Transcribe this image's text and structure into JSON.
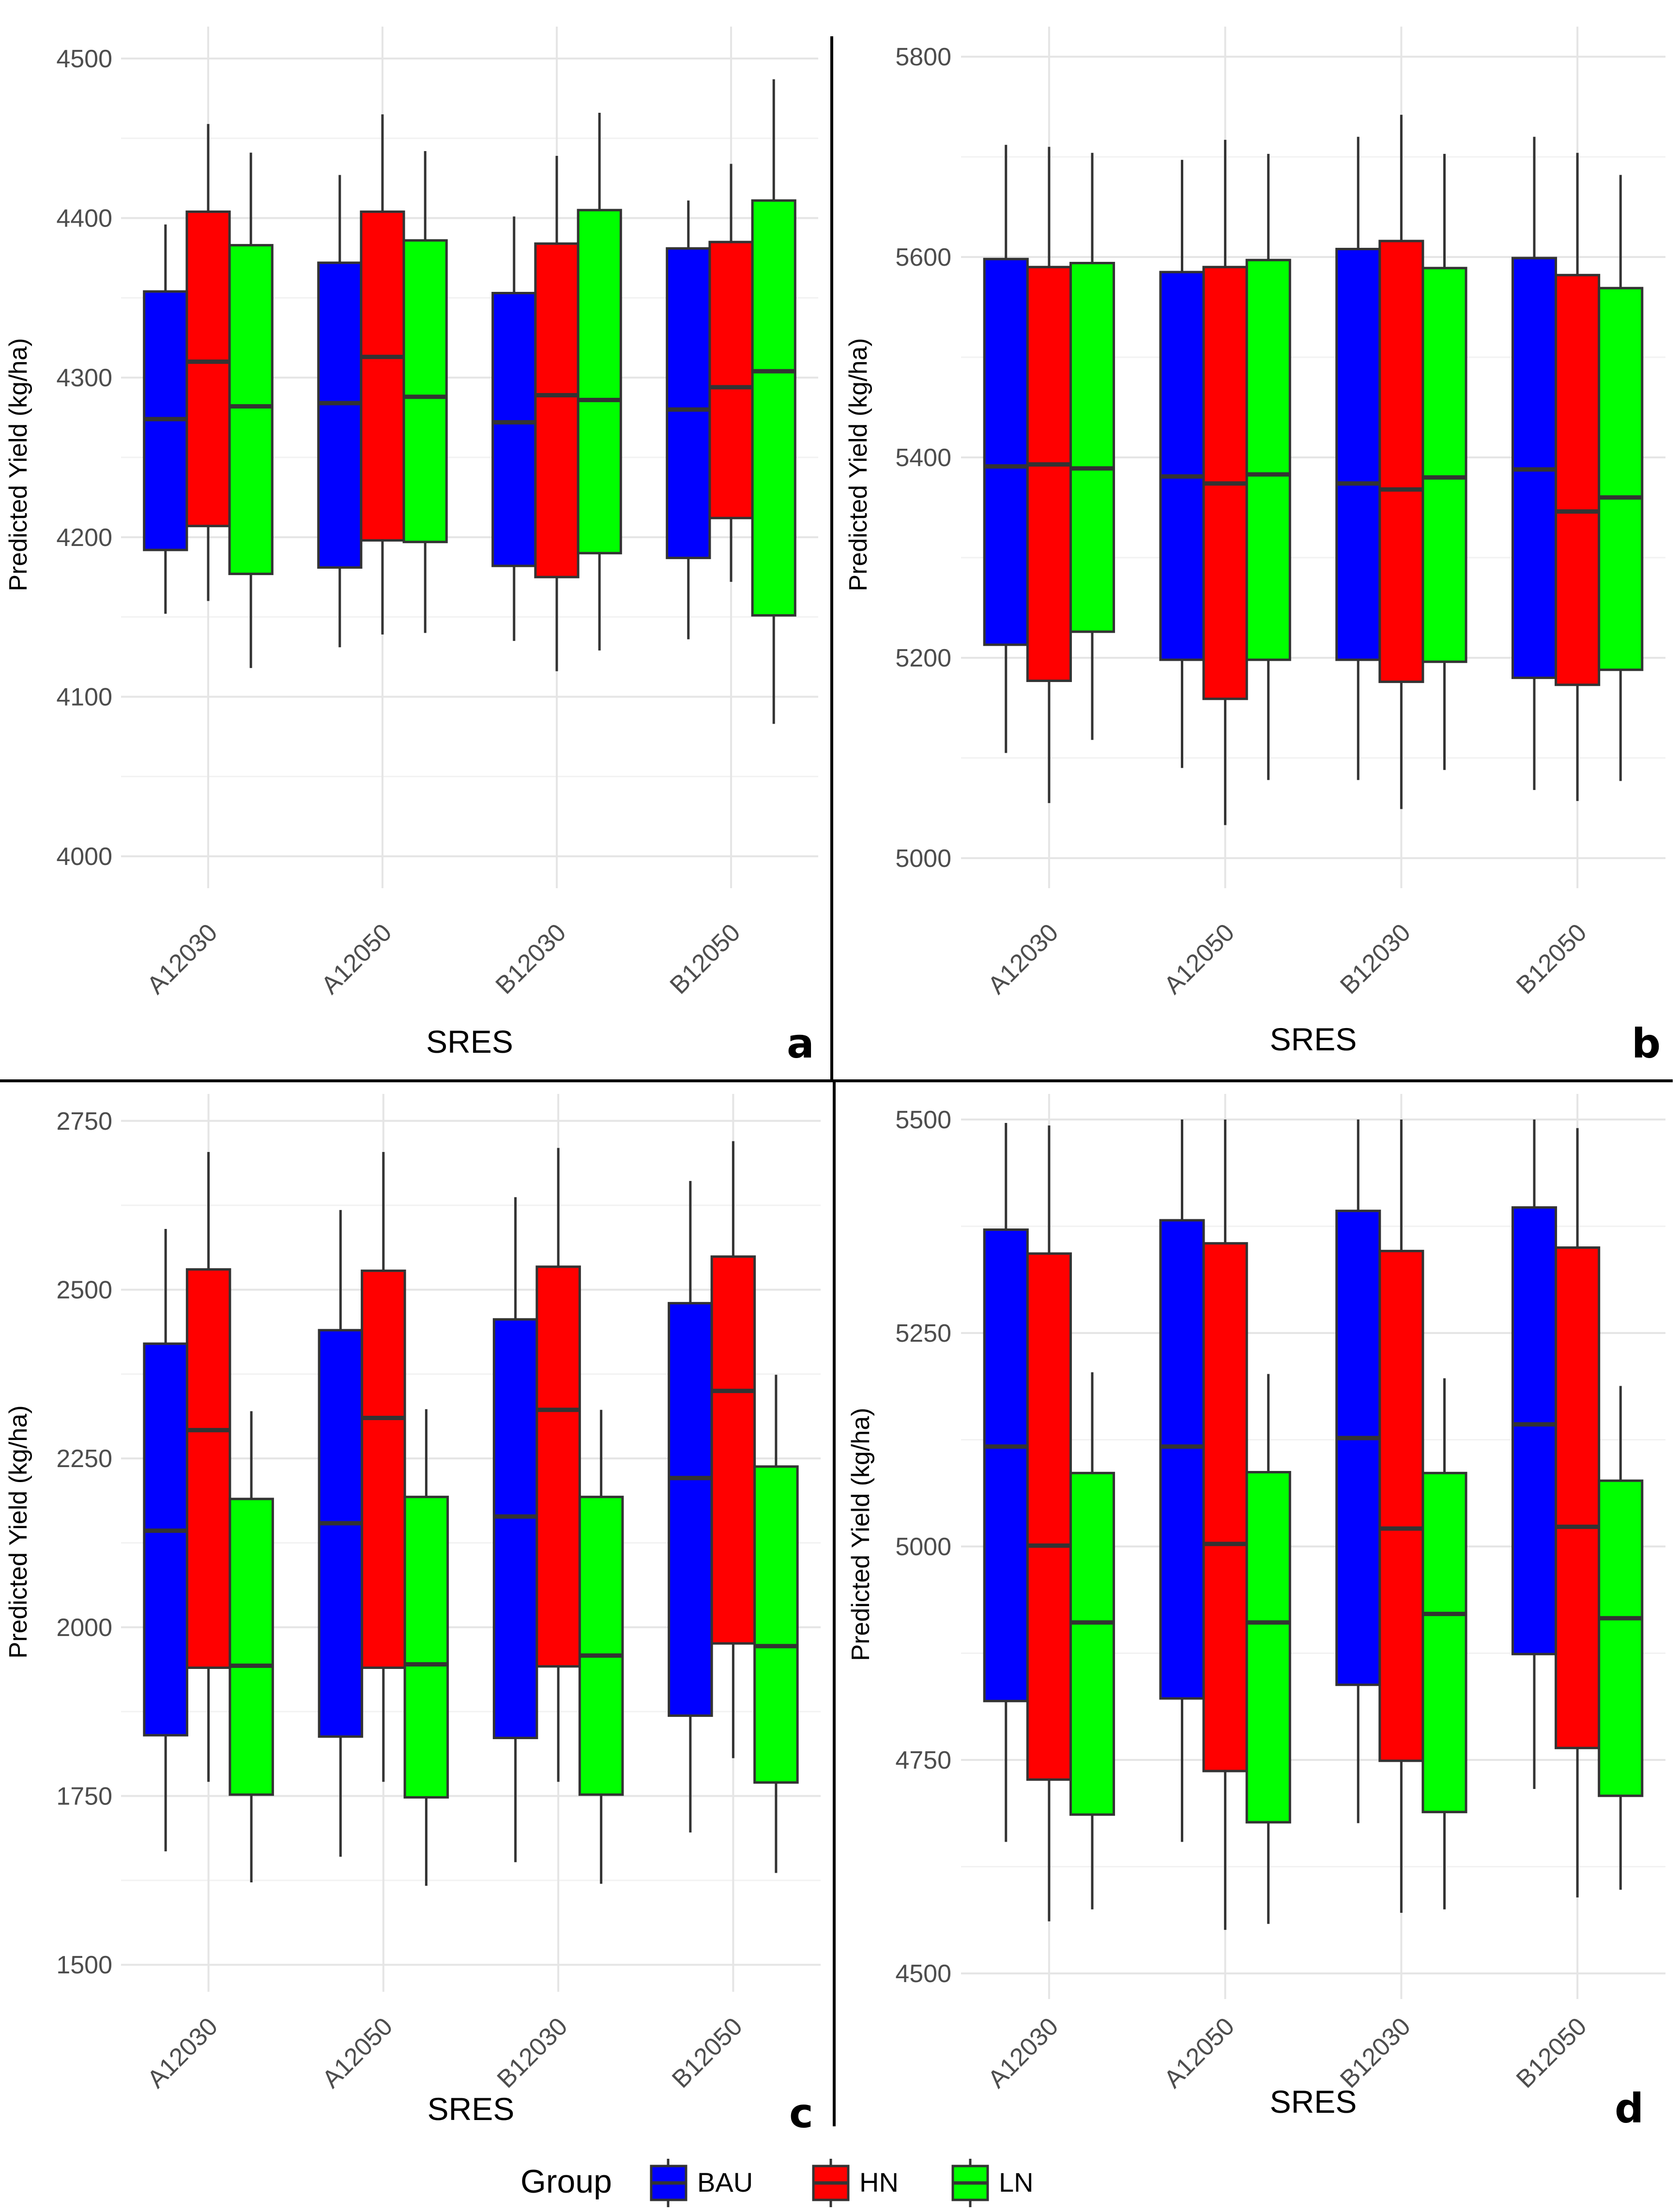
{
  "legend": {
    "title": "Group",
    "items": [
      {
        "label": "BAU",
        "color": "#0000ff"
      },
      {
        "label": "HN",
        "color": "#ff0000"
      },
      {
        "label": "LN",
        "color": "#00ff00"
      }
    ]
  },
  "chart_data": [
    {
      "panel": "a",
      "type": "boxplot",
      "xlabel": "SRES",
      "ylabel": "Predicted Yield (kg/ha)",
      "ylim": [
        3980,
        4520
      ],
      "yticks": [
        4000,
        4100,
        4200,
        4300,
        4400,
        4500
      ],
      "categories": [
        "A12030",
        "A12050",
        "B12030",
        "B12050"
      ],
      "series": [
        {
          "name": "BAU",
          "boxes": [
            {
              "min": 4152,
              "q1": 4192,
              "median": 4274,
              "q3": 4354,
              "max": 4396
            },
            {
              "min": 4131,
              "q1": 4181,
              "median": 4284,
              "q3": 4372,
              "max": 4427
            },
            {
              "min": 4135,
              "q1": 4182,
              "median": 4272,
              "q3": 4353,
              "max": 4401
            },
            {
              "min": 4136,
              "q1": 4187,
              "median": 4280,
              "q3": 4381,
              "max": 4411
            }
          ]
        },
        {
          "name": "HN",
          "boxes": [
            {
              "min": 4160,
              "q1": 4207,
              "median": 4310,
              "q3": 4404,
              "max": 4459
            },
            {
              "min": 4139,
              "q1": 4198,
              "median": 4313,
              "q3": 4404,
              "max": 4465
            },
            {
              "min": 4116,
              "q1": 4175,
              "median": 4289,
              "q3": 4384,
              "max": 4439
            },
            {
              "min": 4172,
              "q1": 4212,
              "median": 4294,
              "q3": 4385,
              "max": 4434
            }
          ]
        },
        {
          "name": "LN",
          "boxes": [
            {
              "min": 4118,
              "q1": 4177,
              "median": 4282,
              "q3": 4383,
              "max": 4441
            },
            {
              "min": 4140,
              "q1": 4197,
              "median": 4288,
              "q3": 4386,
              "max": 4442
            },
            {
              "min": 4129,
              "q1": 4190,
              "median": 4286,
              "q3": 4405,
              "max": 4466
            },
            {
              "min": 4083,
              "q1": 4151,
              "median": 4304,
              "q3": 4411,
              "max": 4487
            }
          ]
        }
      ]
    },
    {
      "panel": "b",
      "type": "boxplot",
      "xlabel": "SRES",
      "ylabel": "Predicted Yield (kg/ha)",
      "ylim": [
        4970,
        5830
      ],
      "yticks": [
        5000,
        5200,
        5400,
        5600,
        5800
      ],
      "categories": [
        "A12030",
        "A12050",
        "B12030",
        "B12050"
      ],
      "series": [
        {
          "name": "BAU",
          "boxes": [
            {
              "min": 5105,
              "q1": 5213,
              "median": 5391,
              "q3": 5598,
              "max": 5712
            },
            {
              "min": 5090,
              "q1": 5198,
              "median": 5381,
              "q3": 5585,
              "max": 5697
            },
            {
              "min": 5078,
              "q1": 5198,
              "median": 5374,
              "q3": 5608,
              "max": 5720
            },
            {
              "min": 5068,
              "q1": 5180,
              "median": 5388,
              "q3": 5599,
              "max": 5720
            }
          ]
        },
        {
          "name": "HN",
          "boxes": [
            {
              "min": 5055,
              "q1": 5177,
              "median": 5393,
              "q3": 5590,
              "max": 5710
            },
            {
              "min": 5033,
              "q1": 5159,
              "median": 5374,
              "q3": 5590,
              "max": 5717
            },
            {
              "min": 5049,
              "q1": 5176,
              "median": 5368,
              "q3": 5616,
              "max": 5742
            },
            {
              "min": 5057,
              "q1": 5173,
              "median": 5346,
              "q3": 5582,
              "max": 5704
            }
          ]
        },
        {
          "name": "LN",
          "boxes": [
            {
              "min": 5118,
              "q1": 5226,
              "median": 5389,
              "q3": 5594,
              "max": 5704
            },
            {
              "min": 5078,
              "q1": 5198,
              "median": 5383,
              "q3": 5597,
              "max": 5703
            },
            {
              "min": 5088,
              "q1": 5196,
              "median": 5380,
              "q3": 5589,
              "max": 5703
            },
            {
              "min": 5077,
              "q1": 5188,
              "median": 5360,
              "q3": 5569,
              "max": 5682
            }
          ]
        }
      ]
    },
    {
      "panel": "c",
      "type": "boxplot",
      "xlabel": "SRES",
      "ylabel": "Predicted Yield (kg/ha)",
      "ylim": [
        1460,
        2790
      ],
      "yticks": [
        1500,
        1750,
        2000,
        2250,
        2500,
        2750
      ],
      "categories": [
        "A12030",
        "A12050",
        "B12030",
        "B12050"
      ],
      "series": [
        {
          "name": "BAU",
          "boxes": [
            {
              "min": 1668,
              "q1": 1840,
              "median": 2143,
              "q3": 2420,
              "max": 2590
            },
            {
              "min": 1660,
              "q1": 1838,
              "median": 2154,
              "q3": 2440,
              "max": 2618
            },
            {
              "min": 1652,
              "q1": 1836,
              "median": 2164,
              "q3": 2456,
              "max": 2637
            },
            {
              "min": 1696,
              "q1": 1869,
              "median": 2221,
              "q3": 2480,
              "max": 2661
            }
          ]
        },
        {
          "name": "HN",
          "boxes": [
            {
              "min": 1771,
              "q1": 1940,
              "median": 2292,
              "q3": 2530,
              "max": 2704
            },
            {
              "min": 1771,
              "q1": 1940,
              "median": 2310,
              "q3": 2528,
              "max": 2704
            },
            {
              "min": 1771,
              "q1": 1942,
              "median": 2322,
              "q3": 2534,
              "max": 2710
            },
            {
              "min": 1806,
              "q1": 1976,
              "median": 2350,
              "q3": 2549,
              "max": 2720
            }
          ]
        },
        {
          "name": "LN",
          "boxes": [
            {
              "min": 1622,
              "q1": 1752,
              "median": 1943,
              "q3": 2190,
              "max": 2320
            },
            {
              "min": 1617,
              "q1": 1748,
              "median": 1945,
              "q3": 2193,
              "max": 2323
            },
            {
              "min": 1620,
              "q1": 1752,
              "median": 1958,
              "q3": 2193,
              "max": 2322
            },
            {
              "min": 1636,
              "q1": 1770,
              "median": 1972,
              "q3": 2238,
              "max": 2374
            }
          ]
        }
      ]
    },
    {
      "panel": "d",
      "type": "boxplot",
      "xlabel": "SRES",
      "ylabel": "Predicted Yield (kg/ha)",
      "ylim": [
        4470,
        5530
      ],
      "yticks": [
        4500,
        4750,
        5000,
        5250,
        5500
      ],
      "categories": [
        "A12030",
        "A12050",
        "B12030",
        "B12050"
      ],
      "series": [
        {
          "name": "BAU",
          "boxes": [
            {
              "min": 4654,
              "q1": 4819,
              "median": 5117,
              "q3": 5371,
              "max": 5496
            },
            {
              "min": 4654,
              "q1": 4822,
              "median": 5117,
              "q3": 5382,
              "max": 5500
            },
            {
              "min": 4676,
              "q1": 4838,
              "median": 5127,
              "q3": 5393,
              "max": 5500
            },
            {
              "min": 4716,
              "q1": 4874,
              "median": 5143,
              "q3": 5397,
              "max": 5500
            }
          ]
        },
        {
          "name": "HN",
          "boxes": [
            {
              "min": 4561,
              "q1": 4727,
              "median": 5001,
              "q3": 5343,
              "max": 5493
            },
            {
              "min": 4551,
              "q1": 4737,
              "median": 5003,
              "q3": 5355,
              "max": 5500
            },
            {
              "min": 4571,
              "q1": 4749,
              "median": 5021,
              "q3": 5346,
              "max": 5500
            },
            {
              "min": 4589,
              "q1": 4764,
              "median": 5023,
              "q3": 5350,
              "max": 5490
            }
          ]
        },
        {
          "name": "LN",
          "boxes": [
            {
              "min": 4575,
              "q1": 4686,
              "median": 4911,
              "q3": 5086,
              "max": 5204
            },
            {
              "min": 4558,
              "q1": 4677,
              "median": 4911,
              "q3": 5087,
              "max": 5202
            },
            {
              "min": 4575,
              "q1": 4689,
              "median": 4921,
              "q3": 5086,
              "max": 5197
            },
            {
              "min": 4598,
              "q1": 4708,
              "median": 4916,
              "q3": 5077,
              "max": 5188
            }
          ]
        }
      ]
    }
  ]
}
